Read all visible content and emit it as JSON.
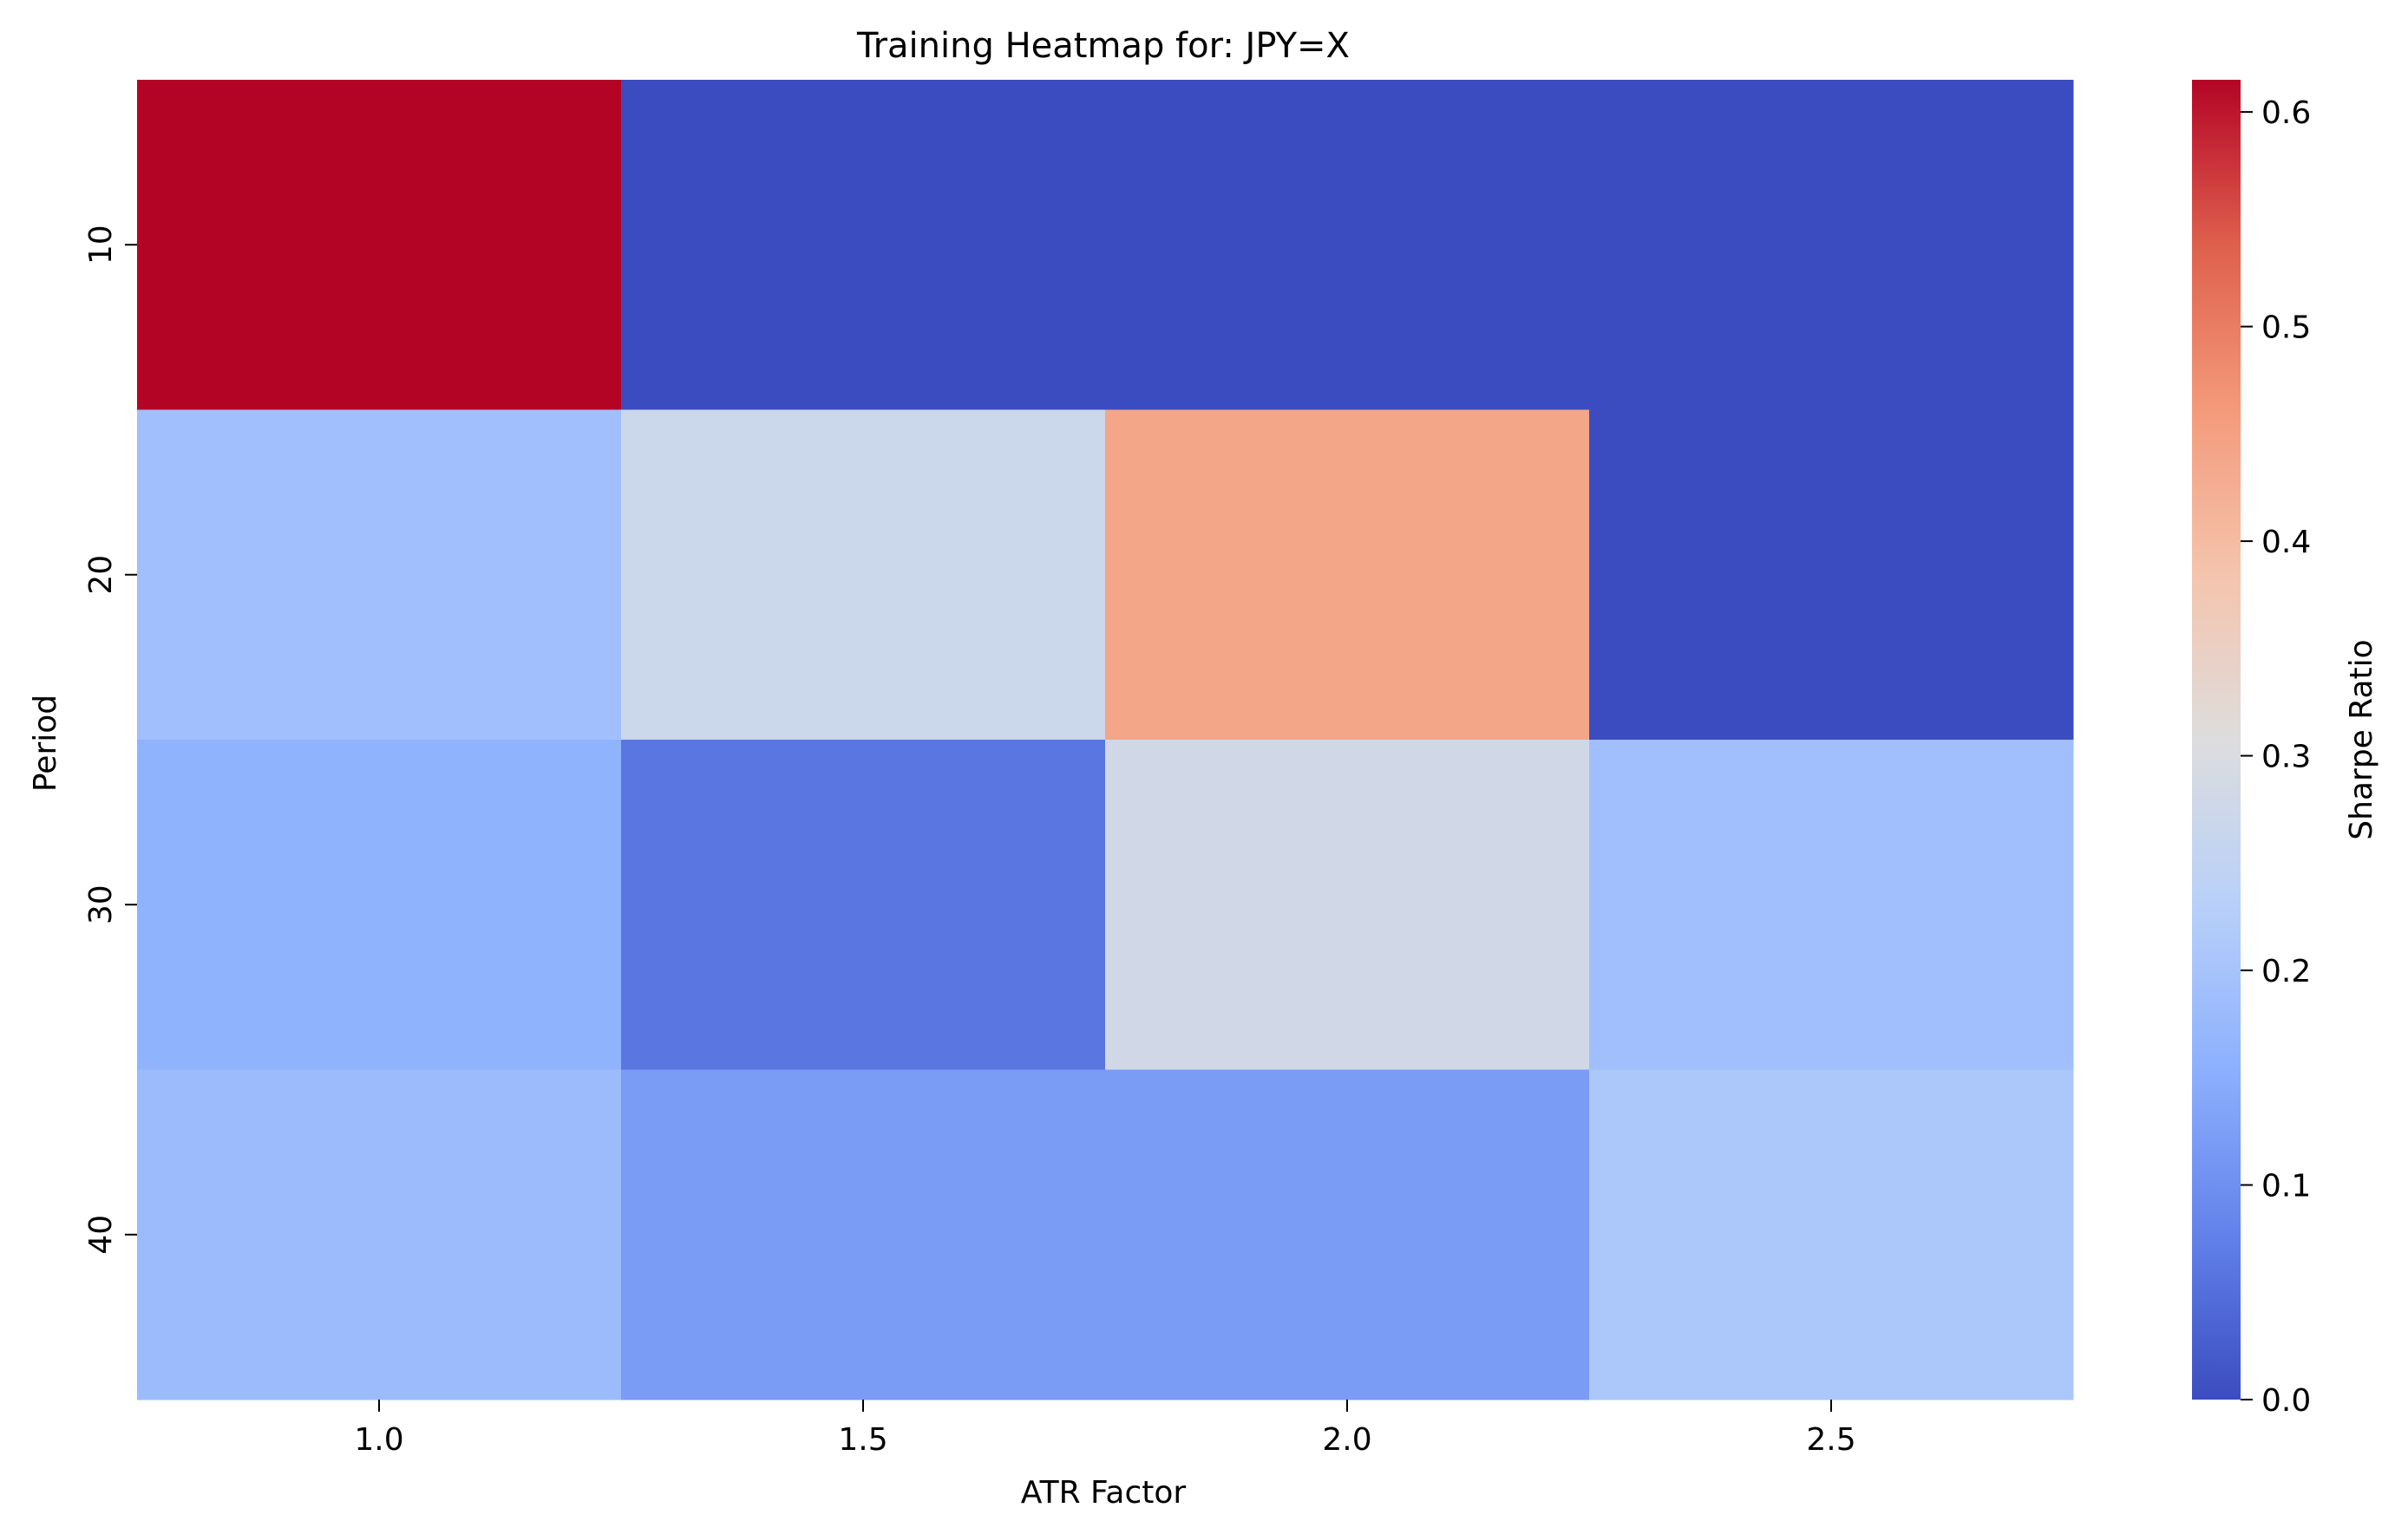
{
  "chart_data": {
    "type": "heatmap",
    "title": "Training Heatmap for: JPY=X",
    "xlabel": "ATR Factor",
    "ylabel": "Period",
    "x_categories": [
      "1.0",
      "1.5",
      "2.0",
      "2.5"
    ],
    "y_categories": [
      "10",
      "20",
      "30",
      "40"
    ],
    "values": [
      [
        0.615,
        0.0,
        0.0,
        0.0
      ],
      [
        0.19,
        0.27,
        0.44,
        0.0
      ],
      [
        0.16,
        0.06,
        0.28,
        0.19
      ],
      [
        0.18,
        0.12,
        0.12,
        0.21
      ]
    ],
    "colorbar": {
      "label": "Sharpe Ratio",
      "range": [
        0.0,
        0.615
      ],
      "ticks": [
        0.0,
        0.1,
        0.2,
        0.3,
        0.4,
        0.5,
        0.6
      ],
      "tick_labels": [
        "0.0",
        "0.1",
        "0.2",
        "0.3",
        "0.4",
        "0.5",
        "0.6"
      ],
      "colormap": "coolwarm",
      "colormap_stops": [
        "#3b4cc0",
        "#6788ee",
        "#9abbff",
        "#c9d7f0",
        "#dddcdc",
        "#f7b89c",
        "#f2cbb7",
        "#e36c55",
        "#b40426"
      ]
    },
    "grid": false,
    "legend": "colorbar-right"
  }
}
